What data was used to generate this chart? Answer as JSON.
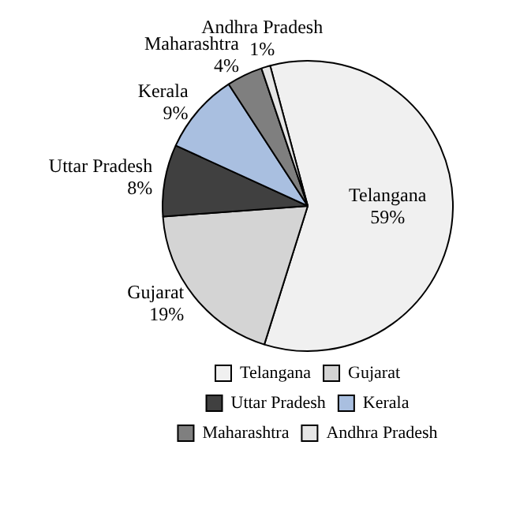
{
  "chart_data": {
    "type": "pie",
    "categories": [
      "Telangana",
      "Gujarat",
      "Uttar Pradesh",
      "Kerala",
      "Maharashtra",
      "Andhra Pradesh"
    ],
    "values": [
      59,
      19,
      8,
      9,
      4,
      1
    ],
    "value_labels": [
      "59%",
      "19%",
      "8%",
      "9%",
      "4%",
      "1%"
    ],
    "colors": [
      "#f0f0f0",
      "#d4d4d4",
      "#404040",
      "#a9bfe0",
      "#7f7f7f",
      "#e6e6e6"
    ],
    "legend": "bottom"
  }
}
